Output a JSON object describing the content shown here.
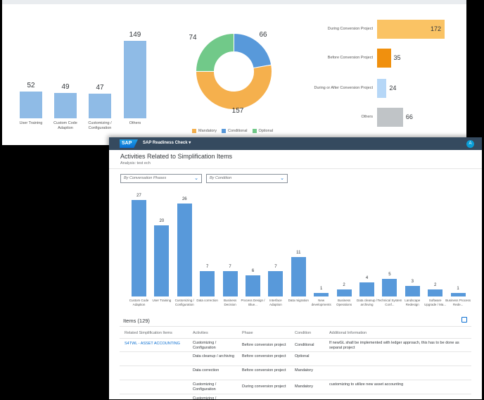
{
  "top_panel": {
    "bar_chart": {
      "type": "bar",
      "categories": [
        "User Training",
        "Custom Code Adaption",
        "Customizing / Configuration",
        "Others"
      ],
      "values": [
        52,
        49,
        47,
        149
      ],
      "color": "#8fbbe6"
    },
    "donut_chart": {
      "type": "pie",
      "slices": [
        {
          "name": "Mandatory",
          "value": 157,
          "color": "#f5b04d"
        },
        {
          "name": "Conditional",
          "value": 66,
          "color": "#5899da"
        },
        {
          "name": "Optional",
          "value": 74,
          "color": "#71c989"
        }
      ],
      "legend": [
        "Mandatory",
        "Conditional",
        "Optional"
      ]
    },
    "hbar_chart": {
      "type": "bar",
      "categories": [
        "During Conversion Project",
        "Before Conversion Project",
        "During or After Conversion Project",
        "Others"
      ],
      "values": [
        172,
        35,
        24,
        66
      ],
      "colors": [
        "#fac364",
        "#f0900e",
        "#b6d7f7",
        "#c0c4c7"
      ]
    }
  },
  "shell": {
    "logo": "SAP",
    "app_title": "SAP Readiness Check ▾",
    "avatar_initial": "A"
  },
  "page": {
    "title": "Activities Related to Simplification Items",
    "subtitle": "Analysis: test ech"
  },
  "filters": {
    "phase": "By Conversation Phases",
    "condition": "By Condition"
  },
  "chart_data": {
    "type": "bar",
    "categories": [
      "Custom Code Adaption",
      "User Training",
      "Customizing / Configuration",
      "Data correction",
      "Business Decision",
      "Process Design / Blue...",
      "Interface Adaption",
      "Data migration",
      "New developments",
      "Business Operations",
      "Data cleanup / archiving",
      "Technical System Conf...",
      "Landscape Redesign",
      "Software Upgrade / Ma...",
      "Business Process Rede..."
    ],
    "values": [
      27,
      20,
      26,
      7,
      7,
      6,
      7,
      11,
      1,
      2,
      4,
      5,
      3,
      2,
      1
    ],
    "labels": [
      "27",
      "20",
      "26",
      "7",
      "7",
      "6",
      "7",
      "11",
      "1",
      "2",
      "4",
      "5",
      "3",
      "2",
      "1"
    ],
    "ylim": [
      0,
      28
    ],
    "color": "#5899da"
  },
  "items": {
    "title": "Items (129)",
    "columns": [
      "Related Simplification Items",
      "Activities",
      "Phase",
      "Condition",
      "Additional Information"
    ],
    "rows": [
      {
        "item": "S4TWL - ASSET ACCOUNTING",
        "activity": [
          "Customizing /",
          "Configuration"
        ],
        "phase": "Before conversion project",
        "condition": "Conditional",
        "info": [
          "If newGL shall be implemented with ledger approach, this has to be done as",
          "separat project"
        ]
      },
      {
        "item": "",
        "activity": [
          "Data cleanup / archiving",
          ""
        ],
        "phase": "Before conversion project",
        "condition": "Optional",
        "info": [
          "",
          ""
        ]
      },
      {
        "item": "",
        "activity": [
          "Data correction",
          ""
        ],
        "phase": "Before conversion project",
        "condition": "Mandatory",
        "info": [
          "",
          ""
        ]
      },
      {
        "item": "",
        "activity": [
          "Customizing /",
          "Configuration"
        ],
        "phase": "During conversion project",
        "condition": "Mandatory",
        "info": [
          "customizing to utilize new asset accounting",
          ""
        ]
      },
      {
        "item": "",
        "activity": [
          "Customizing /",
          ""
        ],
        "phase": "",
        "condition": "",
        "info": [
          "",
          ""
        ]
      }
    ]
  }
}
